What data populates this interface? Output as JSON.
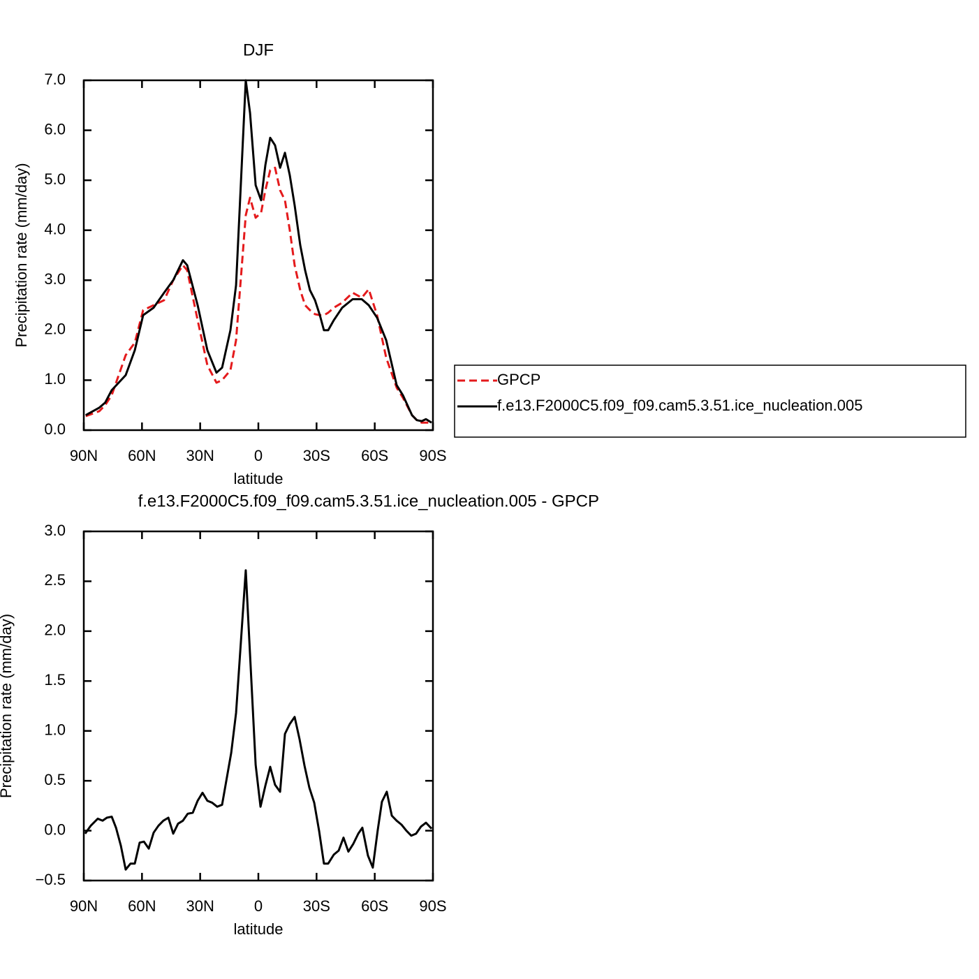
{
  "chart_data": [
    {
      "type": "line",
      "title": "DJF",
      "xlabel": "latitude",
      "ylabel": "Precipitation rate (mm/day)",
      "x": [
        89,
        82,
        79,
        75.6,
        72,
        68.4,
        63.7,
        59.4,
        54,
        48.6,
        43.9,
        38.9,
        36.7,
        31.3,
        26.3,
        21.6,
        18.7,
        14.4,
        11.5,
        6.5,
        4.3,
        1.4,
        -1.4,
        -3.6,
        -6.1,
        -8.6,
        -11.2,
        -13.7,
        -16.2,
        -18.7,
        -21.6,
        -24.1,
        -26.6,
        -29.2,
        -31.7,
        -33.8,
        -36,
        -38.9,
        -43.2,
        -48.6,
        -53.3,
        -56.9,
        -61.2,
        -65.9,
        -71.3,
        -74.5,
        -79.2,
        -81.7,
        -84.2,
        -86.4,
        -89.3
      ],
      "series": [
        {
          "name": "GPCP",
          "color": "#e41a1c",
          "linestyle": "dashed",
          "values": [
            0.28,
            0.38,
            0.5,
            0.7,
            1.1,
            1.5,
            1.75,
            2.4,
            2.5,
            2.6,
            3.0,
            3.3,
            3.2,
            2.2,
            1.3,
            0.95,
            1.0,
            1.2,
            1.8,
            4.3,
            4.65,
            4.25,
            4.35,
            4.8,
            5.2,
            5.25,
            4.8,
            4.6,
            4.0,
            3.3,
            2.8,
            2.5,
            2.4,
            2.32,
            2.3,
            2.3,
            2.35,
            2.45,
            2.55,
            2.75,
            2.65,
            2.82,
            2.3,
            1.45,
            0.85,
            0.65,
            0.3,
            0.2,
            0.15,
            0.15,
            0.15
          ]
        },
        {
          "name": "f.e13.F2000C5.f09_f09.cam5.3.51.ice_nucleation.005",
          "color": "#000000",
          "linestyle": "solid",
          "values": [
            0.3,
            0.45,
            0.55,
            0.8,
            0.95,
            1.1,
            1.6,
            2.3,
            2.45,
            2.75,
            3.0,
            3.4,
            3.3,
            2.5,
            1.6,
            1.15,
            1.25,
            2.0,
            2.9,
            7.0,
            6.35,
            4.9,
            4.6,
            5.3,
            5.85,
            5.7,
            5.25,
            5.55,
            5.1,
            4.5,
            3.7,
            3.2,
            2.8,
            2.6,
            2.3,
            2.0,
            2.0,
            2.2,
            2.45,
            2.62,
            2.62,
            2.5,
            2.25,
            1.8,
            0.9,
            0.7,
            0.3,
            0.2,
            0.18,
            0.22,
            0.15
          ]
        }
      ],
      "xlim": [
        90,
        -90
      ],
      "xticks": [
        {
          "value": 90,
          "label": "90N"
        },
        {
          "value": 60,
          "label": "60N"
        },
        {
          "value": 30,
          "label": "30N"
        },
        0,
        {
          "value": -30,
          "label": "30S"
        },
        {
          "value": -60,
          "label": "60S"
        },
        {
          "value": -90,
          "label": "90S"
        }
      ],
      "ylim": [
        0,
        7
      ],
      "yticks": [
        {
          "value": 0,
          "label": "0.0"
        },
        {
          "value": 1,
          "label": "1.0"
        },
        {
          "value": 2,
          "label": "2.0"
        },
        {
          "value": 3,
          "label": "3.0"
        },
        {
          "value": 4,
          "label": "4.0"
        },
        {
          "value": 5,
          "label": "5.0"
        },
        {
          "value": 6,
          "label": "6.0"
        },
        {
          "value": 7,
          "label": "7.0"
        }
      ],
      "legend": "right"
    },
    {
      "type": "line",
      "title": "f.e13.F2000C5.f09_f09.cam5.3.51.ice_nucleation.005 - GPCP",
      "xlabel": "latitude",
      "ylabel": "Precipitation rate (mm/day)",
      "x": [
        89.3,
        86.4,
        82.8,
        80.3,
        78.1,
        75.6,
        73.4,
        70.9,
        68.4,
        65.9,
        63.7,
        61.2,
        59,
        56.5,
        54,
        51.5,
        49,
        46.4,
        43.9,
        41.4,
        38.9,
        36.4,
        33.8,
        31.3,
        28.8,
        26.3,
        23.8,
        21.2,
        18.7,
        14,
        11.5,
        6.5,
        1.4,
        -1.1,
        -3.6,
        -6.1,
        -8.6,
        -11.2,
        -13.7,
        -16.2,
        -18.7,
        -21.2,
        -23.8,
        -26.3,
        -28.8,
        -31.3,
        -33.8,
        -36,
        -38.9,
        -41.4,
        -43.9,
        -46.4,
        -49,
        -51.5,
        -53.6,
        -56.5,
        -59,
        -61.5,
        -63.7,
        -66.2,
        -68.8,
        -71.3,
        -73.8,
        -76.3,
        -78.8,
        -81.3,
        -83.8,
        -86.4,
        -89.3
      ],
      "values": [
        -0.03,
        0.05,
        0.12,
        0.1,
        0.13,
        0.14,
        0.03,
        -0.15,
        -0.39,
        -0.33,
        -0.33,
        -0.12,
        -0.11,
        -0.18,
        -0.02,
        0.05,
        0.1,
        0.13,
        -0.03,
        0.07,
        0.1,
        0.17,
        0.18,
        0.3,
        0.38,
        0.3,
        0.28,
        0.24,
        0.26,
        0.78,
        1.18,
        2.61,
        0.66,
        0.24,
        0.45,
        0.64,
        0.46,
        0.39,
        0.97,
        1.07,
        1.14,
        0.92,
        0.65,
        0.43,
        0.28,
        0.0,
        -0.33,
        -0.33,
        -0.24,
        -0.2,
        -0.07,
        -0.21,
        -0.13,
        -0.03,
        0.03,
        -0.25,
        -0.37,
        0.0,
        0.29,
        0.39,
        0.15,
        0.1,
        0.06,
        0.0,
        -0.05,
        -0.03,
        0.04,
        0.08,
        0.02
      ],
      "color": "#000000",
      "xlim": [
        90,
        -90
      ],
      "xticks": [
        {
          "value": 90,
          "label": "90N"
        },
        {
          "value": 60,
          "label": "60N"
        },
        {
          "value": 30,
          "label": "30N"
        },
        0,
        {
          "value": -30,
          "label": "30S"
        },
        {
          "value": -60,
          "label": "60S"
        },
        {
          "value": -90,
          "label": "90S"
        }
      ],
      "ylim": [
        -0.5,
        3
      ],
      "yticks": [
        {
          "value": -0.5,
          "label": "−0.5"
        },
        {
          "value": 0,
          "label": "0.0"
        },
        {
          "value": 0.5,
          "label": "0.5"
        },
        {
          "value": 1,
          "label": "1.0"
        },
        {
          "value": 1.5,
          "label": "1.5"
        },
        {
          "value": 2,
          "label": "2.0"
        },
        {
          "value": 2.5,
          "label": "2.5"
        },
        {
          "value": 3,
          "label": "3.0"
        }
      ]
    }
  ]
}
